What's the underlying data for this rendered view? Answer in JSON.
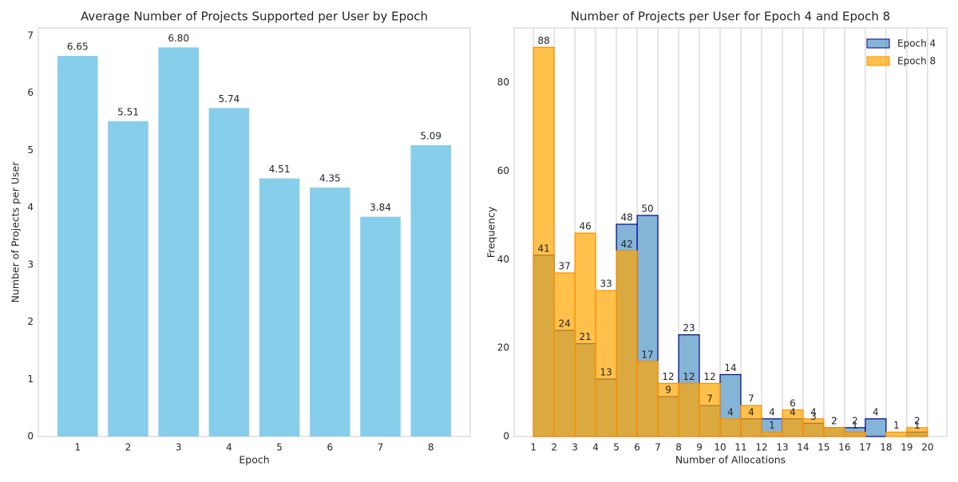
{
  "chart_data": [
    {
      "type": "bar",
      "title": "Average Number of Projects Supported per User by Epoch",
      "xlabel": "Epoch",
      "ylabel": "Number of Projects per User",
      "categories": [
        "1",
        "2",
        "3",
        "4",
        "5",
        "6",
        "7",
        "8"
      ],
      "values": [
        6.65,
        5.51,
        6.8,
        5.74,
        4.51,
        4.35,
        3.84,
        5.09
      ],
      "value_labels": [
        "6.65",
        "5.51",
        "6.80",
        "5.74",
        "4.51",
        "4.35",
        "3.84",
        "5.09"
      ],
      "color": "#87ceeb",
      "ylim": [
        0,
        7.14
      ],
      "yticks": [
        0,
        1,
        2,
        3,
        4,
        5,
        6,
        7
      ],
      "grid": false
    },
    {
      "type": "histogram",
      "title": "Number of Projects per User for Epoch 4 and Epoch 8",
      "xlabel": "Number of Allocations",
      "ylabel": "Frequency",
      "bins": [
        1,
        2,
        3,
        4,
        5,
        6,
        7,
        8,
        9,
        10,
        11,
        12,
        13,
        14,
        15,
        16,
        17,
        18,
        19,
        20
      ],
      "series": [
        {
          "name": "Epoch 4",
          "color": "#1f77b4",
          "edgecolor": "#00008b",
          "values": [
            41,
            24,
            21,
            13,
            48,
            50,
            9,
            23,
            7,
            14,
            4,
            4,
            4,
            3,
            2,
            2,
            4,
            0,
            1
          ]
        },
        {
          "name": "Epoch 8",
          "color": "#ffa500",
          "edgecolor": "#ff8c00",
          "values": [
            88,
            37,
            46,
            33,
            42,
            17,
            12,
            12,
            12,
            4,
            7,
            1,
            6,
            4,
            2,
            1,
            0,
            1,
            2
          ]
        }
      ],
      "xlim": [
        0.07,
        20.93
      ],
      "xticks": [
        1,
        2,
        3,
        4,
        5,
        6,
        7,
        8,
        9,
        10,
        11,
        12,
        13,
        14,
        15,
        16,
        17,
        18,
        19,
        20
      ],
      "ylim": [
        0,
        92.4
      ],
      "yticks": [
        0,
        20,
        40,
        60,
        80
      ],
      "grid": "x",
      "legend": "upper right"
    }
  ]
}
